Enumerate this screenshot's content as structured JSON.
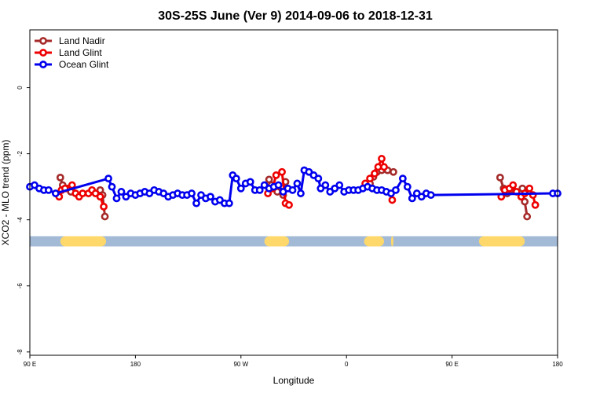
{
  "chart_data": {
    "type": "line",
    "title": "30S-25S June (Ver 9)   2014-09-06 to 2018-12-31",
    "xlabel": "Longitude",
    "ylabel": "XCO2 - MLO trend (ppm)",
    "x_ticks": [
      {
        "value": 90,
        "label": "90 E"
      },
      {
        "value": 180,
        "label": "180"
      },
      {
        "value": 270,
        "label": "90 W"
      },
      {
        "value": 360,
        "label": "0"
      },
      {
        "value": 450,
        "label": "90 E"
      },
      {
        "value": 540,
        "label": "180"
      }
    ],
    "y_ticks": [
      {
        "value": 0,
        "label": "0"
      },
      {
        "value": -2,
        "label": "-2"
      },
      {
        "value": -4,
        "label": "-4"
      },
      {
        "value": -6,
        "label": "-6"
      },
      {
        "value": -8,
        "label": "-8"
      }
    ],
    "xlim": [
      90,
      540
    ],
    "ylim": [
      -8.1,
      1.75
    ],
    "grid": false,
    "legend_position": "top-left",
    "land_band": {
      "y": -4.65,
      "ocean_color": "#a3bad6",
      "land_color": "#ffd86b",
      "land_segments": [
        [
          116,
          155
        ],
        [
          290,
          311
        ],
        [
          375,
          392
        ],
        [
          398,
          400
        ],
        [
          473,
          512
        ]
      ]
    },
    "series": [
      {
        "name": "Land Nadir",
        "color": "#a52a2a",
        "segments": [
          [
            [
              116,
              -2.72
            ],
            [
              118,
              -2.95
            ],
            [
              122,
              -3.05
            ],
            [
              125,
              -3.15
            ]
          ],
          [
            [
              150,
              -3.1
            ],
            [
              152,
              -3.25
            ],
            [
              154,
              -3.9
            ]
          ],
          [
            [
              294,
              -2.78
            ],
            [
              296,
              -2.95
            ],
            [
              301,
              -3.15
            ],
            [
              306,
              -3.25
            ],
            [
              308,
              -2.85
            ]
          ],
          [
            [
              380,
              -2.9
            ],
            [
              383,
              -2.7
            ],
            [
              386,
              -2.55
            ],
            [
              390,
              -2.5
            ],
            [
              395,
              -2.5
            ],
            [
              400,
              -2.55
            ]
          ],
          [
            [
              491,
              -2.72
            ],
            [
              494,
              -3.05
            ],
            [
              497,
              -3.2
            ],
            [
              500,
              -3.1
            ]
          ],
          [
            [
              510,
              -3.05
            ],
            [
              512,
              -3.45
            ],
            [
              514,
              -3.9
            ]
          ]
        ]
      },
      {
        "name": "Land Glint",
        "color": "#ee0000",
        "segments": [
          [
            [
              115,
              -3.3
            ],
            [
              117,
              -3.1
            ],
            [
              120,
              -3.05
            ],
            [
              126,
              -2.95
            ],
            [
              129,
              -3.2
            ],
            [
              132,
              -3.3
            ],
            [
              135,
              -3.2
            ],
            [
              140,
              -3.2
            ],
            [
              143,
              -3.1
            ],
            [
              146,
              -3.2
            ],
            [
              150,
              -3.3
            ],
            [
              153,
              -3.6
            ]
          ],
          [
            [
              293,
              -3.2
            ],
            [
              297,
              -3.05
            ],
            [
              300,
              -2.65
            ],
            [
              305,
              -2.55
            ],
            [
              308,
              -3.5
            ],
            [
              311,
              -3.55
            ]
          ],
          [
            [
              376,
              -2.9
            ],
            [
              380,
              -2.75
            ],
            [
              384,
              -2.6
            ],
            [
              387,
              -2.4
            ],
            [
              390,
              -2.15
            ],
            [
              392,
              -2.4
            ]
          ],
          [
            [
              399,
              -3.4
            ]
          ],
          [
            [
              492,
              -3.3
            ],
            [
              495,
              -3.1
            ],
            [
              499,
              -3.05
            ],
            [
              502,
              -2.95
            ],
            [
              505,
              -3.15
            ],
            [
              509,
              -3.3
            ],
            [
              512,
              -3.2
            ],
            [
              516,
              -3.05
            ],
            [
              519,
              -3.25
            ],
            [
              521,
              -3.55
            ]
          ]
        ]
      },
      {
        "name": "Ocean Glint",
        "color": "#0000ee",
        "segments": [
          [
            [
              90,
              -3.0
            ],
            [
              94,
              -2.95
            ],
            [
              98,
              -3.05
            ],
            [
              102,
              -3.1
            ],
            [
              106,
              -3.1
            ],
            [
              112,
              -3.2
            ],
            [
              157,
              -2.75
            ],
            [
              160,
              -3.0
            ],
            [
              164,
              -3.35
            ],
            [
              168,
              -3.15
            ],
            [
              172,
              -3.3
            ],
            [
              176,
              -3.2
            ],
            [
              180,
              -3.25
            ],
            [
              184,
              -3.2
            ],
            [
              188,
              -3.15
            ],
            [
              192,
              -3.2
            ],
            [
              196,
              -3.1
            ],
            [
              200,
              -3.15
            ],
            [
              204,
              -3.2
            ],
            [
              208,
              -3.3
            ],
            [
              212,
              -3.25
            ],
            [
              216,
              -3.2
            ],
            [
              220,
              -3.25
            ],
            [
              224,
              -3.25
            ],
            [
              228,
              -3.2
            ],
            [
              232,
              -3.5
            ],
            [
              236,
              -3.25
            ],
            [
              240,
              -3.35
            ],
            [
              244,
              -3.3
            ],
            [
              248,
              -3.45
            ],
            [
              252,
              -3.4
            ],
            [
              256,
              -3.5
            ],
            [
              260,
              -3.5
            ],
            [
              263,
              -2.65
            ],
            [
              266,
              -2.75
            ],
            [
              270,
              -3.05
            ],
            [
              274,
              -2.9
            ],
            [
              278,
              -2.85
            ],
            [
              282,
              -3.1
            ],
            [
              286,
              -3.1
            ],
            [
              290,
              -2.95
            ],
            [
              294,
              -3.05
            ],
            [
              298,
              -3.0
            ],
            [
              302,
              -2.95
            ],
            [
              306,
              -3.15
            ],
            [
              310,
              -3.05
            ],
            [
              314,
              -3.1
            ],
            [
              318,
              -2.9
            ],
            [
              321,
              -3.2
            ],
            [
              324,
              -2.5
            ],
            [
              328,
              -2.55
            ],
            [
              332,
              -2.65
            ],
            [
              336,
              -2.75
            ],
            [
              338,
              -3.05
            ],
            [
              342,
              -2.95
            ],
            [
              346,
              -3.15
            ],
            [
              350,
              -3.05
            ],
            [
              354,
              -2.95
            ],
            [
              358,
              -3.15
            ],
            [
              362,
              -3.1
            ],
            [
              366,
              -3.1
            ],
            [
              370,
              -3.1
            ],
            [
              374,
              -3.05
            ],
            [
              378,
              -3.0
            ],
            [
              382,
              -3.05
            ],
            [
              386,
              -3.1
            ],
            [
              390,
              -3.1
            ],
            [
              394,
              -3.15
            ],
            [
              398,
              -3.2
            ],
            [
              402,
              -3.1
            ],
            [
              408,
              -2.75
            ],
            [
              412,
              -3.0
            ],
            [
              416,
              -3.35
            ],
            [
              420,
              -3.2
            ],
            [
              424,
              -3.3
            ],
            [
              428,
              -3.2
            ],
            [
              432,
              -3.25
            ],
            [
              536,
              -3.2
            ],
            [
              540,
              -3.2
            ]
          ]
        ]
      }
    ]
  }
}
